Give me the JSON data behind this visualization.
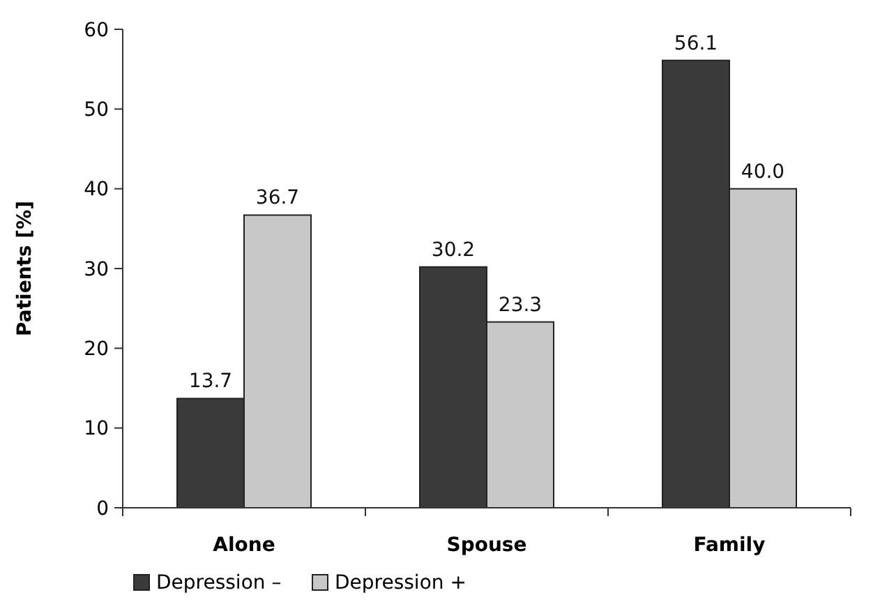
{
  "chart_data": {
    "type": "bar",
    "ylabel": "Patients [%]",
    "categories": [
      "Alone",
      "Spouse",
      "Family"
    ],
    "series": [
      {
        "name": "Depression –",
        "color": "#3a3a3a",
        "values": [
          13.7,
          30.2,
          56.1
        ],
        "value_labels": [
          "13.7",
          "30.2",
          "56.1"
        ]
      },
      {
        "name": "Depression +",
        "color": "#c8c8c8",
        "values": [
          36.7,
          23.3,
          40.0
        ],
        "value_labels": [
          "36.7",
          "23.3",
          "40.0"
        ]
      }
    ],
    "ylim": [
      0,
      60
    ],
    "yticks": [
      0,
      10,
      20,
      30,
      40,
      50,
      60
    ],
    "grid": false,
    "legend": "bottom left"
  }
}
